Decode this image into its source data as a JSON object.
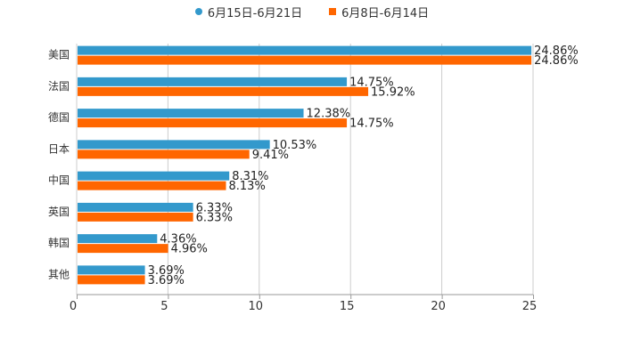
{
  "chart_data": {
    "type": "bar",
    "orientation": "horizontal",
    "title": "",
    "xlabel": "",
    "ylabel": "",
    "xlim": [
      0,
      25
    ],
    "x_ticks": [
      "0",
      "5",
      "10",
      "15",
      "20",
      "25"
    ],
    "grid": true,
    "legend_position": "top",
    "categories": [
      "美国",
      "法国",
      "德国",
      "日本",
      "中国",
      "英国",
      "韩国",
      "其他"
    ],
    "series": [
      {
        "name": "6月15日-6月21日",
        "color": "#3399cc",
        "values": [
          24.86,
          14.75,
          12.38,
          10.53,
          8.31,
          6.33,
          4.36,
          3.69
        ],
        "labels": [
          "24.86%",
          "14.75%",
          "12.38%",
          "10.53%",
          "8.31%",
          "6.33%",
          "4.36%",
          "3.69%"
        ]
      },
      {
        "name": "6月8日-6月14日",
        "color": "#ff6600",
        "values": [
          24.86,
          15.92,
          14.75,
          9.41,
          8.13,
          6.33,
          4.96,
          3.69
        ],
        "labels": [
          "24.86%",
          "15.92%",
          "14.75%",
          "9.41%",
          "8.13%",
          "6.33%",
          "4.96%",
          "3.69%"
        ]
      }
    ]
  },
  "legend": {
    "items": [
      {
        "label": "6月15日-6月21日",
        "color": "#3399cc"
      },
      {
        "label": "6月8日-6月14日",
        "color": "#ff6600"
      }
    ]
  }
}
